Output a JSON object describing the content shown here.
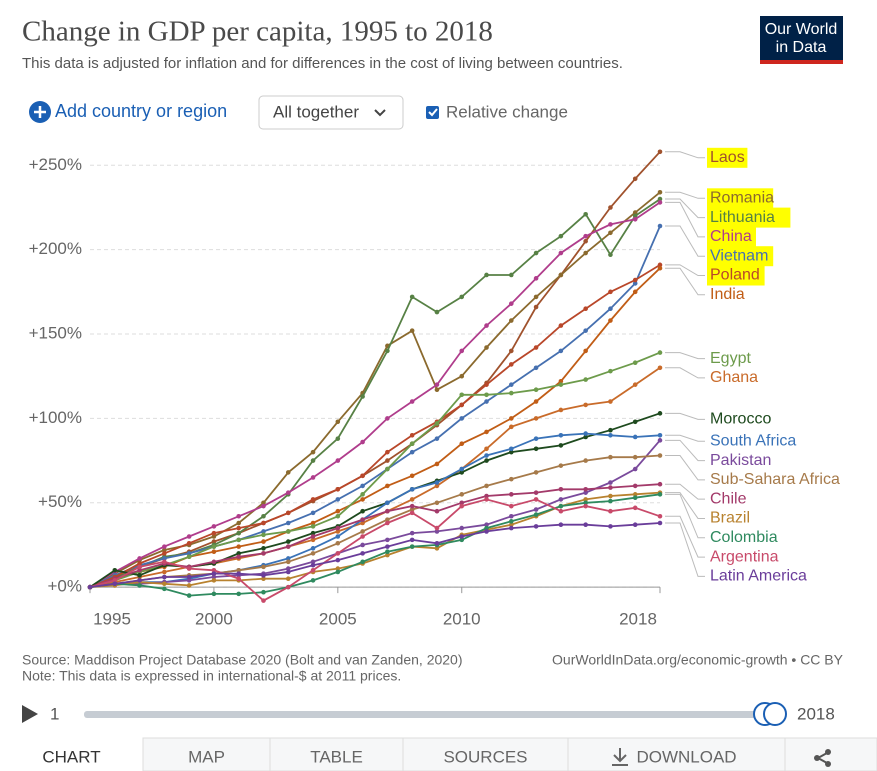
{
  "header": {
    "title": "Change in GDP per capita, 1995 to 2018",
    "subtitle": "This data is adjusted for inflation and for differences in the cost of living between countries.",
    "logo": [
      "Our World",
      "in Data"
    ]
  },
  "controls": {
    "add": "Add country or region",
    "dropdown": "All together",
    "checkbox": "Relative change"
  },
  "chart_data": {
    "type": "line",
    "x": [
      1995,
      1996,
      1997,
      1998,
      1999,
      2000,
      2001,
      2002,
      2003,
      2004,
      2005,
      2006,
      2007,
      2008,
      2009,
      2010,
      2011,
      2012,
      2013,
      2014,
      2015,
      2016,
      2017,
      2018
    ],
    "xlim": [
      1995,
      2018
    ],
    "xticks": [
      1995,
      2000,
      2005,
      2010,
      2018
    ],
    "ylim": [
      -10,
      265
    ],
    "yticks": [
      {
        "value": 0,
        "label": "+0%"
      },
      {
        "value": 50,
        "label": "+50%"
      },
      {
        "value": 100,
        "label": "+100%"
      },
      {
        "value": 150,
        "label": "+150%"
      },
      {
        "value": 200,
        "label": "+200%"
      },
      {
        "value": 250,
        "label": "+250%"
      }
    ],
    "grid": true,
    "series": [
      {
        "name": "Laos",
        "color": "#a0522d",
        "highlight": true,
        "values": [
          0,
          6,
          12,
          17,
          21,
          27,
          32,
          38,
          44,
          51,
          58,
          66,
          75,
          85,
          96,
          108,
          121,
          140,
          166,
          185,
          205,
          225,
          242,
          258
        ]
      },
      {
        "name": "Romania",
        "color": "#8b6a2e",
        "highlight": true,
        "values": [
          0,
          8,
          16,
          22,
          25,
          30,
          38,
          50,
          68,
          80,
          98,
          115,
          143,
          152,
          117,
          125,
          142,
          158,
          172,
          185,
          198,
          210,
          222,
          234
        ]
      },
      {
        "name": "Lithuania",
        "color": "#578145",
        "highlight": true,
        "values": [
          0,
          5,
          12,
          18,
          20,
          25,
          32,
          42,
          55,
          75,
          88,
          113,
          140,
          172,
          163,
          172,
          185,
          185,
          198,
          208,
          221,
          197,
          220,
          230
        ]
      },
      {
        "name": "China",
        "color": "#b03d8c",
        "highlight": true,
        "values": [
          0,
          9,
          17,
          24,
          30,
          36,
          42,
          48,
          56,
          65,
          75,
          86,
          100,
          110,
          120,
          140,
          155,
          168,
          183,
          198,
          208,
          215,
          218,
          228
        ]
      },
      {
        "name": "Vietnam",
        "color": "#4670b0",
        "highlight": true,
        "values": [
          0,
          7,
          13,
          17,
          20,
          24,
          28,
          33,
          38,
          44,
          52,
          60,
          70,
          80,
          88,
          100,
          110,
          120,
          130,
          140,
          152,
          165,
          180,
          214
        ]
      },
      {
        "name": "Poland",
        "color": "#b9472a",
        "highlight": true,
        "values": [
          0,
          6,
          14,
          20,
          26,
          32,
          35,
          38,
          44,
          52,
          58,
          66,
          80,
          90,
          98,
          108,
          120,
          132,
          142,
          155,
          165,
          175,
          182,
          191
        ]
      },
      {
        "name": "India",
        "color": "#c15d16",
        "highlight": false,
        "values": [
          0,
          5,
          9,
          12,
          18,
          21,
          24,
          27,
          33,
          38,
          45,
          52,
          60,
          66,
          73,
          85,
          92,
          100,
          110,
          122,
          140,
          158,
          175,
          189
        ]
      },
      {
        "name": "Egypt",
        "color": "#6d9b4b",
        "highlight": false,
        "values": [
          0,
          4,
          9,
          13,
          18,
          24,
          28,
          31,
          33,
          36,
          42,
          55,
          70,
          85,
          97,
          114,
          114,
          115,
          117,
          120,
          123,
          128,
          133,
          139
        ]
      },
      {
        "name": "Ghana",
        "color": "#c96b2a",
        "highlight": false,
        "values": [
          0,
          3,
          6,
          9,
          12,
          14,
          17,
          20,
          24,
          28,
          33,
          38,
          45,
          52,
          60,
          70,
          82,
          95,
          100,
          105,
          108,
          110,
          120,
          130
        ]
      },
      {
        "name": "Morocco",
        "color": "#1e4a1e",
        "highlight": false,
        "values": [
          0,
          10,
          7,
          13,
          12,
          14,
          20,
          23,
          27,
          32,
          36,
          45,
          50,
          58,
          63,
          68,
          75,
          80,
          82,
          84,
          89,
          93,
          98,
          103
        ]
      },
      {
        "name": "South Africa",
        "color": "#3a73b8",
        "highlight": false,
        "values": [
          0,
          2,
          3,
          3,
          5,
          8,
          10,
          13,
          17,
          23,
          30,
          40,
          50,
          58,
          62,
          70,
          78,
          82,
          88,
          90,
          91,
          90,
          89,
          90
        ]
      },
      {
        "name": "Pakistan",
        "color": "#7a4a9c",
        "highlight": false,
        "values": [
          0,
          2,
          2,
          3,
          4,
          6,
          7,
          8,
          11,
          15,
          20,
          25,
          28,
          32,
          33,
          35,
          37,
          42,
          46,
          52,
          56,
          62,
          70,
          87
        ]
      },
      {
        "name": "Sub-Sahara Africa",
        "color": "#a67a4a",
        "highlight": false,
        "values": [
          0,
          2,
          4,
          6,
          7,
          8,
          10,
          12,
          15,
          20,
          26,
          33,
          40,
          46,
          50,
          55,
          60,
          64,
          68,
          72,
          75,
          77,
          77,
          78
        ]
      },
      {
        "name": "Chile",
        "color": "#a33a6a",
        "highlight": false,
        "values": [
          0,
          5,
          10,
          14,
          12,
          15,
          18,
          20,
          24,
          30,
          35,
          40,
          45,
          48,
          45,
          50,
          54,
          55,
          56,
          58,
          58,
          59,
          60,
          61
        ]
      },
      {
        "name": "Brazil",
        "color": "#b8822f",
        "highlight": false,
        "values": [
          0,
          1,
          3,
          2,
          1,
          4,
          4,
          5,
          5,
          9,
          11,
          14,
          19,
          24,
          23,
          31,
          34,
          37,
          42,
          48,
          52,
          54,
          55,
          56
        ]
      },
      {
        "name": "Colombia",
        "color": "#2f8a5f",
        "highlight": false,
        "values": [
          0,
          2,
          1,
          -1,
          -5,
          -4,
          -4,
          -3,
          0,
          4,
          9,
          15,
          21,
          24,
          25,
          28,
          35,
          39,
          43,
          48,
          50,
          51,
          53,
          55
        ]
      },
      {
        "name": "Argentina",
        "color": "#c84a6a",
        "highlight": false,
        "values": [
          0,
          4,
          12,
          15,
          11,
          10,
          5,
          -8,
          0,
          10,
          20,
          30,
          38,
          44,
          35,
          48,
          52,
          48,
          52,
          45,
          48,
          45,
          47,
          42
        ]
      },
      {
        "name": "Latin America",
        "color": "#6a3d9a",
        "highlight": false,
        "values": [
          0,
          2,
          4,
          6,
          6,
          8,
          8,
          7,
          9,
          13,
          16,
          20,
          24,
          28,
          26,
          30,
          33,
          35,
          36,
          37,
          37,
          36,
          37,
          38
        ]
      }
    ]
  },
  "footer": {
    "source": "Source: Maddison Project Database 2020 (Bolt and van Zanden, 2020)",
    "note": "Note: This data is expressed in international-$ at 2011 prices.",
    "url": "OurWorldInData.org/economic-growth • CC BY"
  },
  "timeline": {
    "start": "1",
    "end": "2018"
  },
  "tabs": [
    "CHART",
    "MAP",
    "TABLE",
    "SOURCES",
    "DOWNLOAD"
  ]
}
